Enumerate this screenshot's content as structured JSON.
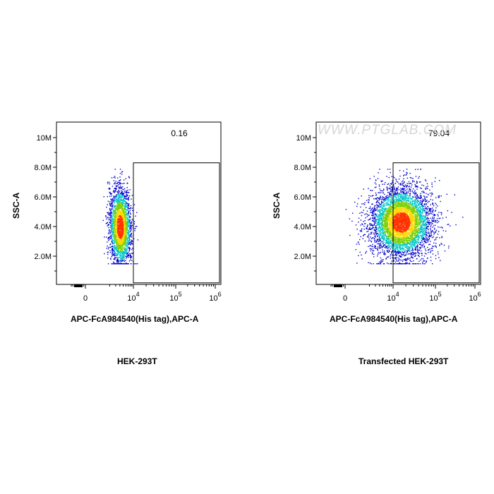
{
  "chart_data": [
    {
      "type": "scatter",
      "style": "density-colored pseudocolor dot plot",
      "xlabel": "APC-FcA984540(His tag),APC-A",
      "ylabel": "SSC-A",
      "sample_label": "HEK-293T",
      "x_scale": "biexponential",
      "x_ticks": [
        "0",
        "10^4",
        "10^5",
        "10^6"
      ],
      "y_ticks": [
        "2.0M",
        "4.0M",
        "6.0M",
        "8.0M",
        "10M"
      ],
      "ylim": [
        0,
        11000000
      ],
      "gate": {
        "percent": "0.16",
        "x_range": [
          "10^4",
          "10^6"
        ],
        "y_range": [
          200000,
          8300000
        ]
      },
      "population": {
        "x_center_log10": 3.6,
        "y_center": 4000000,
        "spread": "narrow, diagonal"
      }
    },
    {
      "type": "scatter",
      "style": "density-colored pseudocolor dot plot",
      "xlabel": "APC-FcA984540(His tag),APC-A",
      "ylabel": "SSC-A",
      "sample_label": "Transfected HEK-293T",
      "x_scale": "biexponential",
      "x_ticks": [
        "0",
        "10^4",
        "10^5",
        "10^6"
      ],
      "y_ticks": [
        "2.0M",
        "4.0M",
        "6.0M",
        "8.0M",
        "10M"
      ],
      "ylim": [
        0,
        11000000
      ],
      "gate": {
        "percent": "79.04",
        "x_range": [
          "10^4",
          "10^6"
        ],
        "y_range": [
          200000,
          8300000
        ]
      },
      "population": {
        "x_center_log10": 4.25,
        "y_center": 4300000,
        "spread": "broad"
      },
      "watermark": "WWW.PTGLAB.COM"
    }
  ],
  "colors": {
    "low": "#0000cd",
    "mid": "#00c8c8",
    "midhigh": "#7cd000",
    "high": "#ffd700",
    "peak": "#ff3300"
  }
}
